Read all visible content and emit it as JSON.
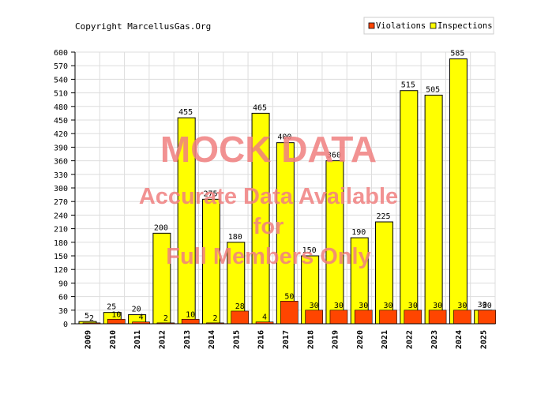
{
  "copyright": "Copyright MarcellusGas.Org",
  "watermark": {
    "line1": "MOCK DATA",
    "line2": "Accurate Data Available",
    "line3": "for",
    "line4": "Full Members Only",
    "color": "#f08080"
  },
  "chart_data": {
    "type": "bar",
    "categories": [
      "2009",
      "2010",
      "2011",
      "2012",
      "2013",
      "2014",
      "2015",
      "2016",
      "2017",
      "2018",
      "2019",
      "2020",
      "2021",
      "2022",
      "2023",
      "2024",
      "2025"
    ],
    "series": [
      {
        "name": "Violations",
        "color": "#ff4500",
        "values": [
          2,
          10,
          4,
          2,
          10,
          2,
          28,
          4,
          50,
          30,
          30,
          30,
          30,
          30,
          30,
          30,
          30
        ]
      },
      {
        "name": "Inspections",
        "color": "#ffff00",
        "values": [
          5,
          25,
          20,
          200,
          455,
          275,
          180,
          465,
          400,
          150,
          360,
          190,
          225,
          515,
          505,
          585,
          30
        ]
      }
    ],
    "yticks": [
      0,
      30,
      60,
      90,
      120,
      150,
      180,
      210,
      240,
      270,
      300,
      330,
      360,
      390,
      420,
      450,
      480,
      510,
      540,
      570,
      600
    ],
    "ylim": [
      0,
      600
    ],
    "grid": true,
    "legend_position": "top-right",
    "title": "",
    "xlabel": "",
    "ylabel": ""
  }
}
